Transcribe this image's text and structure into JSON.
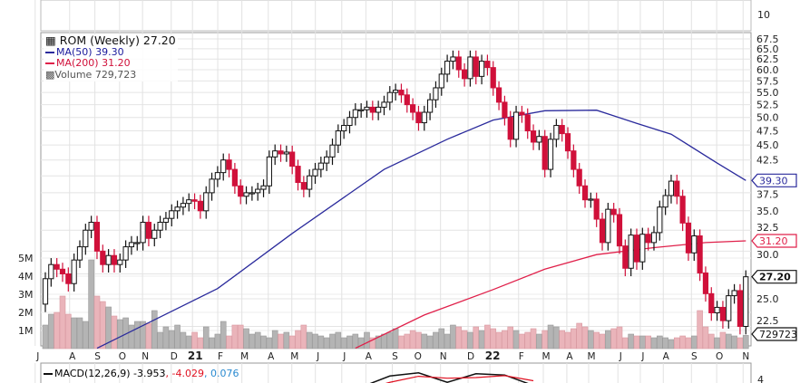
{
  "legend": {
    "title": "ROM (Weekly) 27.20",
    "ma50": "MA(50) 39.30",
    "ma200": "MA(200) 31.20",
    "volume": "Volume 729,723"
  },
  "macd_legend": {
    "label": "MACD(12,26,9) -3.953",
    "signal": ", -4.029",
    "hist": ", 0.076"
  },
  "top_panel_label": "10",
  "macd_axis_label": "4",
  "colors": {
    "up": "#ffffff",
    "down": "#d0103a",
    "ma50": "#2a2a9c",
    "ma200": "#e0204a",
    "vol_up": "#b4b4b4",
    "vol_down": "#eab4ba"
  },
  "chart_data": {
    "type": "candlestick",
    "title": "ROM (Weekly)",
    "y_scale": "log",
    "ylim": [
      20.7,
      67.5
    ],
    "price_ticks": [
      "67.5",
      "65.0",
      "62.5",
      "60.0",
      "57.5",
      "55.0",
      "52.5",
      "50.0",
      "47.5",
      "45.0",
      "42.5",
      "37.5",
      "35.0",
      "32.5",
      "30.0",
      "25.0",
      "22.5"
    ],
    "volume_ticks": [
      "5M",
      "4M",
      "3M",
      "2M",
      "1M"
    ],
    "x_labels": [
      "J",
      "A",
      "S",
      "O",
      "N",
      "D",
      "21",
      "F",
      "M",
      "A",
      "M",
      "J",
      "J",
      "A",
      "S",
      "O",
      "N",
      "D",
      "22",
      "F",
      "M",
      "A",
      "M",
      "J",
      "J",
      "A",
      "S",
      "O",
      "N"
    ],
    "x_label_week": [
      -1.3,
      4.7,
      9.1,
      13.4,
      17.4,
      22.4,
      26.1,
      30.5,
      34.7,
      39.3,
      43.4,
      47.5,
      52.1,
      56.3,
      60.9,
      64.9,
      69.3,
      74.1,
      77.9,
      82.9,
      87.2,
      91.3,
      95.1,
      100.2,
      104.1,
      108.1,
      113.0,
      117.4,
      122.0
    ],
    "first_open": 24.5,
    "closes": [
      27,
      28.5,
      28,
      27.5,
      26.5,
      29,
      30.5,
      32.5,
      33.5,
      30,
      28.5,
      29.5,
      28.5,
      29,
      30.5,
      31,
      31,
      33.5,
      31.5,
      32.5,
      33.5,
      34,
      35,
      35.5,
      36,
      36.5,
      36.3,
      35,
      37.5,
      39.5,
      40.5,
      42.5,
      41,
      38.5,
      37,
      37.5,
      37.5,
      38,
      38.5,
      43,
      44,
      43.5,
      43.8,
      41.5,
      39,
      38,
      40,
      41,
      42,
      43,
      45,
      47.5,
      48.5,
      50,
      51.5,
      51.5,
      52,
      51,
      52,
      53,
      55,
      55.5,
      54.5,
      52.5,
      51,
      49,
      51,
      53.5,
      56,
      59,
      62,
      63,
      60,
      58,
      63,
      58.5,
      62,
      60.5,
      56,
      53,
      50,
      46,
      51,
      50.5,
      47.5,
      45.5,
      46.5,
      41,
      46,
      48.5,
      47,
      44,
      41,
      38.5,
      36.5,
      36.6,
      33.9,
      31,
      35.2,
      34.5,
      30.6,
      28.1,
      31.9,
      28.8,
      32,
      31,
      32.2,
      35.5,
      37.1,
      39.2,
      37,
      33.4,
      29.8,
      31.8,
      27.6,
      25.5,
      23.7,
      24.2,
      23,
      25.3,
      25.8,
      22.5,
      27.2
    ],
    "volume_millions": [
      1.3,
      1.9,
      2.0,
      2.9,
      1.9,
      1.7,
      1.7,
      1.5,
      4.9,
      2.9,
      2.6,
      2.3,
      1.8,
      1.6,
      1.7,
      1.3,
      1.5,
      1.5,
      1.4,
      2.1,
      0.9,
      1.2,
      1.0,
      1.3,
      0.9,
      0.7,
      0.9,
      0.6,
      1.2,
      0.6,
      0.8,
      1.5,
      0.7,
      1.3,
      1.3,
      1.1,
      0.8,
      0.9,
      0.7,
      0.6,
      1.0,
      0.8,
      0.9,
      0.7,
      1.0,
      1.3,
      0.9,
      0.8,
      0.7,
      0.6,
      0.8,
      0.9,
      0.6,
      0.7,
      0.8,
      0.6,
      0.9,
      0.6,
      0.7,
      0.8,
      0.9,
      1.1,
      0.7,
      0.8,
      1.0,
      0.9,
      0.8,
      0.7,
      0.9,
      1.1,
      0.8,
      1.3,
      1.2,
      1.0,
      0.9,
      1.2,
      1.0,
      1.3,
      1.1,
      0.9,
      1.0,
      1.2,
      1.0,
      0.8,
      0.9,
      1.1,
      0.8,
      1.0,
      1.3,
      1.2,
      1.0,
      0.9,
      1.1,
      1.4,
      1.2,
      1.0,
      0.9,
      0.8,
      1.0,
      1.1,
      1.2,
      0.6,
      0.8,
      0.7,
      0.7,
      0.7,
      0.6,
      0.7,
      0.6,
      0.5,
      0.6,
      0.7,
      0.6,
      0.7,
      2.1,
      1.2,
      0.8,
      0.6,
      0.9,
      0.8,
      0.7,
      0.6,
      0.73
    ],
    "ma50": {
      "weeks": [
        9,
        30,
        43,
        59,
        70,
        78,
        87,
        96,
        103,
        109,
        117,
        122
      ],
      "values": [
        20.7,
        26.0,
        32.1,
        41.0,
        46.0,
        49.5,
        51.3,
        51.4,
        48.9,
        46.9,
        42.0,
        39.3
      ]
    },
    "ma200": {
      "weeks": [
        54,
        66,
        78,
        87,
        96,
        106,
        115,
        122
      ],
      "values": [
        20.7,
        23.5,
        25.9,
        28.0,
        29.6,
        30.4,
        31.0,
        31.2
      ]
    },
    "tags": {
      "ma50": "39.30",
      "ma200": "31.20",
      "last": "27.20",
      "volume": "729723"
    },
    "macd": {
      "weeks": [
        55,
        60,
        65,
        70,
        75,
        80,
        85
      ],
      "values": [
        -1,
        2.5,
        3.5,
        0.5,
        3.2,
        2.8,
        -0.5
      ],
      "signal": [
        -2,
        0.5,
        2.4,
        1.8,
        2.0,
        2.6,
        1.0
      ]
    }
  }
}
